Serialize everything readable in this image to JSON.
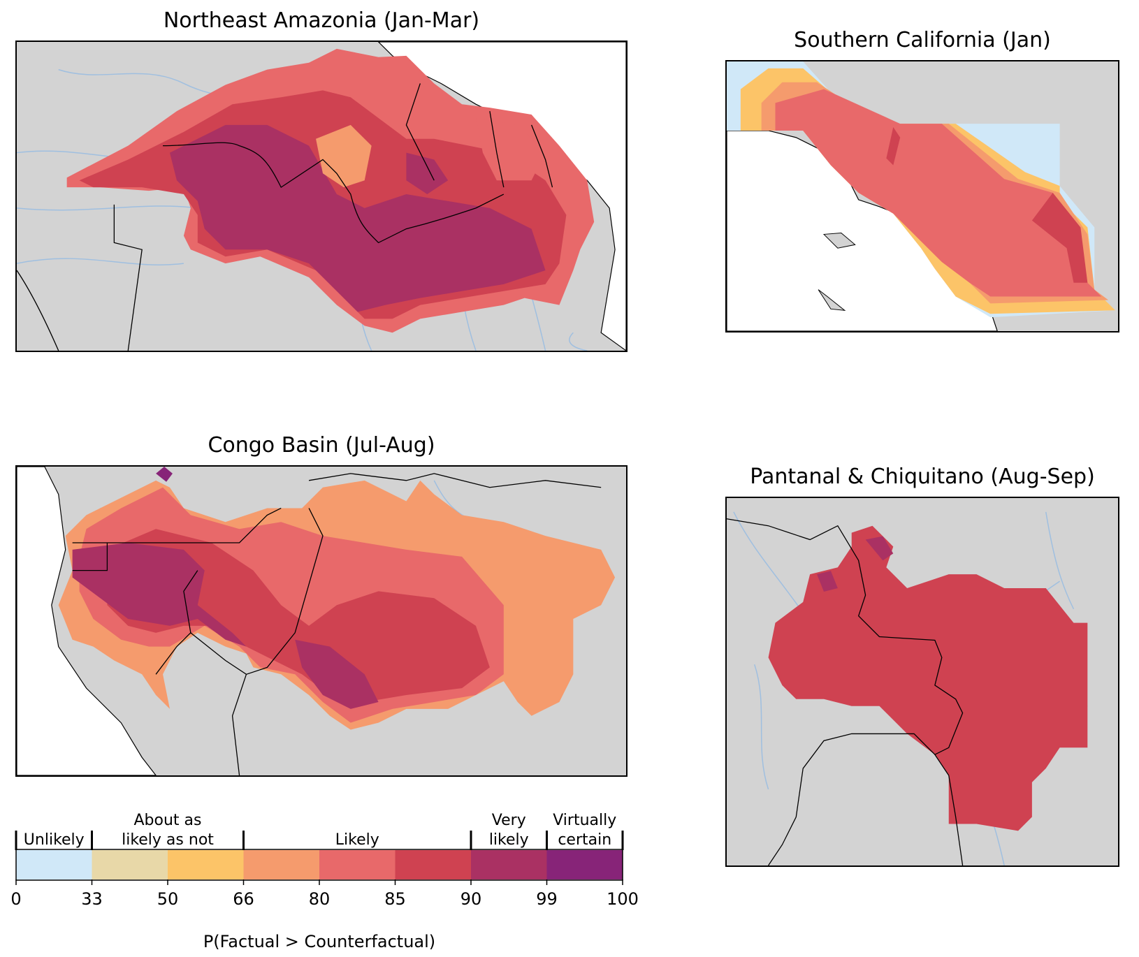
{
  "panels": {
    "amazonia": {
      "title": "Northeast Amazonia (Jan-Mar)"
    },
    "california": {
      "title": "Southern California (Jan)"
    },
    "congo": {
      "title": "Congo Basin (Jul-Aug)"
    },
    "pantanal": {
      "title": "Pantanal & Chiquitano (Aug-Sep)"
    }
  },
  "colorbar": {
    "label": "P(Factual > Counterfactual)",
    "ticks": [
      "0",
      "33",
      "50",
      "66",
      "80",
      "85",
      "90",
      "99",
      "100"
    ],
    "categories": [
      {
        "lines": [
          "Unlikely"
        ]
      },
      {
        "lines": [
          "About as",
          "likely as not"
        ]
      },
      {
        "lines": [
          "Likely"
        ]
      },
      {
        "lines": [
          "Very",
          "likely"
        ]
      },
      {
        "lines": [
          "Virtually",
          "certain"
        ]
      }
    ],
    "bins": [
      {
        "from": 0,
        "to": 33,
        "color": "#d0e8f8"
      },
      {
        "from": 33,
        "to": 50,
        "color": "#e8d8a8"
      },
      {
        "from": 50,
        "to": 66,
        "color": "#fcc468"
      },
      {
        "from": 66,
        "to": 80,
        "color": "#f59b6d"
      },
      {
        "from": 80,
        "to": 85,
        "color": "#e8696a"
      },
      {
        "from": 85,
        "to": 90,
        "color": "#cf4251"
      },
      {
        "from": 90,
        "to": 99,
        "color": "#aa3163"
      },
      {
        "from": 99,
        "to": 100,
        "color": "#872478"
      }
    ]
  },
  "colors": {
    "land": "#d3d3d3",
    "ocean": "#ffffff",
    "rivers": "#9fbfe0",
    "borders": "#000000"
  }
}
